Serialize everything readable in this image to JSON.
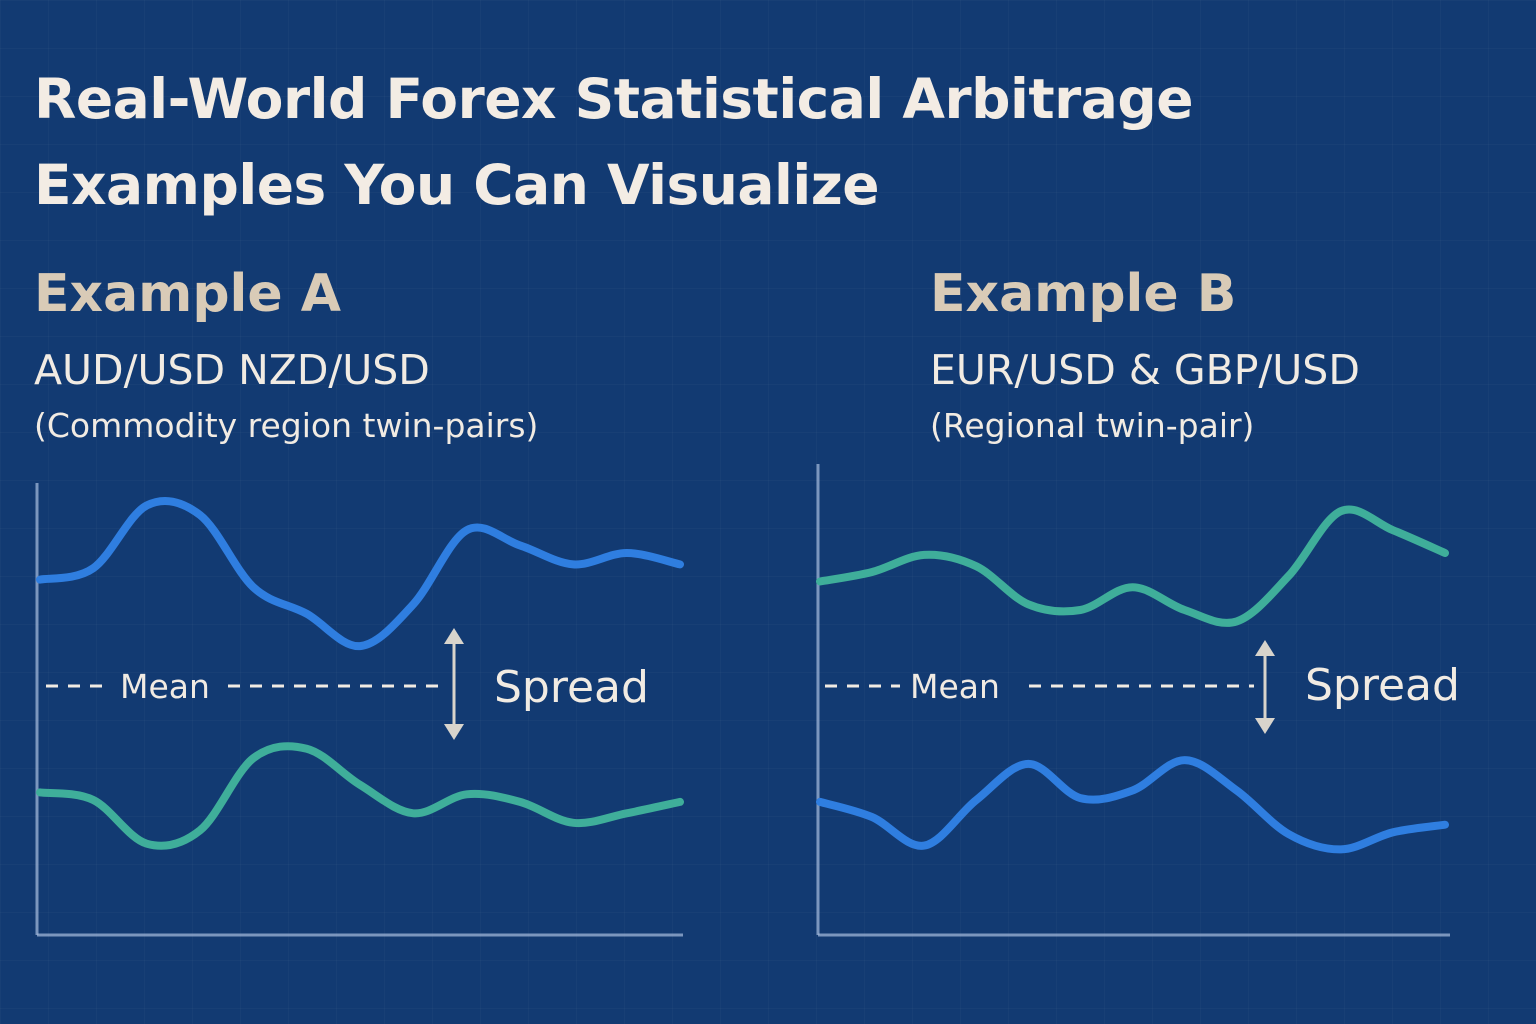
{
  "title_line1": "Real-World Forex Statistical Arbitrage",
  "title_line2": "Examples You Can Visualize",
  "colors": {
    "background": "#123a72",
    "blue_line": "#2f7ee0",
    "green_line": "#3fae9a",
    "axis": "#9fb6d8",
    "text": "#f1ebe3",
    "heading": "#d9cbb7"
  },
  "examples": [
    {
      "heading": "Example A",
      "pairs": "AUD/USD  NZD/USD",
      "description": "(Commodity region twin-pairs)",
      "mean_label": "Mean",
      "spread_label": "Spread"
    },
    {
      "heading": "Example B",
      "pairs": "EUR/USD & GBP/USD",
      "description": "(Regional twin-pair)",
      "mean_label": "Mean",
      "spread_label": "Spread"
    }
  ],
  "chart_data": [
    {
      "type": "line",
      "title": "",
      "xlabel": "",
      "ylabel": "",
      "x": [
        0,
        1,
        2,
        3,
        4,
        5,
        6,
        7,
        8,
        9,
        10,
        11,
        12
      ],
      "ylim": [
        -1,
        1
      ],
      "mean": 0,
      "grid": false,
      "legend": "none",
      "series": [
        {
          "color": "#2f7ee0",
          "values": [
            0.56,
            0.62,
            0.95,
            0.9,
            0.52,
            0.38,
            0.21,
            0.43,
            0.82,
            0.74,
            0.64,
            0.7,
            0.64
          ]
        },
        {
          "color": "#3fae9a",
          "values": [
            -0.56,
            -0.6,
            -0.83,
            -0.76,
            -0.38,
            -0.33,
            -0.52,
            -0.67,
            -0.57,
            -0.61,
            -0.72,
            -0.67,
            -0.61
          ]
        }
      ]
    },
    {
      "type": "line",
      "title": "",
      "xlabel": "",
      "ylabel": "",
      "x": [
        0,
        1,
        2,
        3,
        4,
        5,
        6,
        7,
        8,
        9,
        10,
        11,
        12
      ],
      "ylim": [
        -1,
        1
      ],
      "mean": 0,
      "grid": false,
      "legend": "none",
      "series": [
        {
          "color": "#3fae9a",
          "values": [
            0.55,
            0.6,
            0.69,
            0.63,
            0.43,
            0.4,
            0.52,
            0.4,
            0.34,
            0.58,
            0.92,
            0.82,
            0.7
          ]
        },
        {
          "color": "#2f7ee0",
          "values": [
            -0.61,
            -0.69,
            -0.84,
            -0.6,
            -0.41,
            -0.59,
            -0.55,
            -0.39,
            -0.55,
            -0.78,
            -0.86,
            -0.77,
            -0.73
          ]
        }
      ]
    }
  ]
}
